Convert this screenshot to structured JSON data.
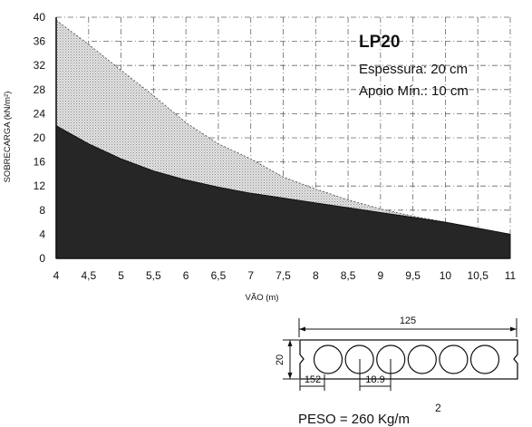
{
  "chart_data": {
    "type": "area",
    "title": "LP20",
    "info_lines": [
      "Espessura: 20 cm",
      "Apoio Mín.: 10 cm"
    ],
    "xlabel": "VÃO (m)",
    "ylabel": "SOBRECARGA (kN/m²)",
    "xlim": [
      4,
      11
    ],
    "ylim": [
      0,
      40
    ],
    "xticks": [
      4,
      4.5,
      5,
      5.5,
      6,
      6.5,
      7,
      7.5,
      8,
      8.5,
      9,
      9.5,
      10,
      10.5,
      11
    ],
    "xtick_labels": [
      "4",
      "4,5",
      "5",
      "5,5",
      "6",
      "6,5",
      "7",
      "7,5",
      "8",
      "8,5",
      "9",
      "9,5",
      "10",
      "10,5",
      "11"
    ],
    "yticks": [
      0,
      4,
      8,
      12,
      16,
      20,
      24,
      28,
      32,
      36,
      40
    ],
    "grid": true,
    "series": [
      {
        "x": [
          4,
          4.5,
          5,
          5.5,
          6,
          6.5,
          7,
          7.5,
          8,
          8.5,
          9,
          9.5,
          10,
          10.5,
          11
        ],
        "values": [
          39.5,
          35.5,
          31.2,
          27,
          22.5,
          19,
          16.5,
          13.5,
          11.5,
          9.7,
          8.2,
          7,
          6,
          5,
          4
        ]
      },
      {
        "x": [
          4,
          4.5,
          5,
          5.5,
          6,
          6.5,
          7,
          7.5,
          8,
          8.5,
          9,
          9.5,
          10,
          10.5,
          11
        ],
        "values": [
          22,
          19,
          16.5,
          14.5,
          13,
          11.8,
          10.8,
          10,
          9.2,
          8.4,
          7.6,
          6.8,
          6,
          5,
          4
        ]
      }
    ]
  },
  "section": {
    "width_label": "125",
    "height_label": "20",
    "dim_152_label": "152",
    "dim_189_label": "18.9",
    "hole_count": 6,
    "peso_label": "PESO = 260 Kg/m",
    "peso_sup": "2"
  },
  "colors": {
    "upper_fill": "#d4d4d4",
    "lower_fill": "#262626",
    "grid": "#666666",
    "ink": "#111111"
  }
}
